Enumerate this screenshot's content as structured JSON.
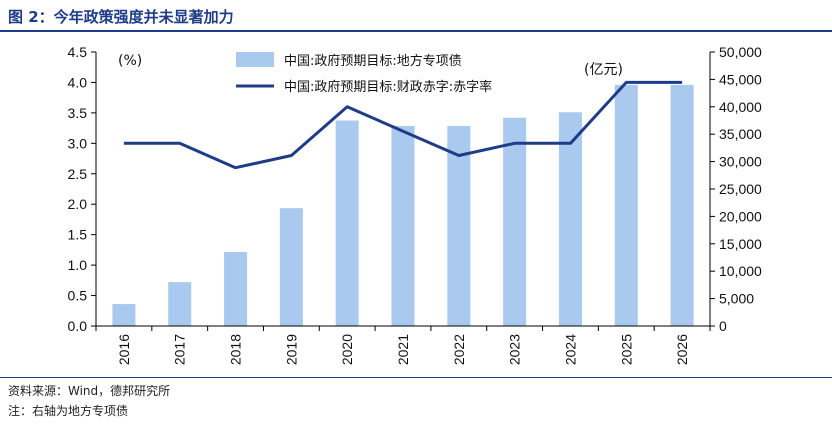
{
  "title": "图 2：今年政策强度并未显著加力",
  "source_note": "资料来源：Wind，德邦研究所",
  "axis_note": "注：右轴为地方专项债",
  "colors": {
    "bar": "#a9c9ee",
    "line": "#1f3c88",
    "title": "#1f3c88"
  },
  "chart_data": {
    "type": "bar+line",
    "categories": [
      "2016",
      "2017",
      "2018",
      "2019",
      "2020",
      "2021",
      "2022",
      "2023",
      "2024",
      "2025",
      "2026"
    ],
    "series": [
      {
        "name": "中国:政府预期目标:地方专项债",
        "type": "bar",
        "axis": "right",
        "values": [
          4000,
          8000,
          13500,
          21500,
          37500,
          36500,
          36500,
          38000,
          39000,
          44000,
          44000
        ]
      },
      {
        "name": "中国:政府预期目标:财政赤字:赤字率",
        "type": "line",
        "axis": "left",
        "values": [
          3.0,
          3.0,
          2.6,
          2.8,
          3.6,
          3.2,
          2.8,
          3.0,
          3.0,
          4.0,
          4.0
        ]
      }
    ],
    "left_axis": {
      "unit": "(%)",
      "ylim": [
        0,
        4.5
      ],
      "ticks": [
        "0.0",
        "0.5",
        "1.0",
        "1.5",
        "2.0",
        "2.5",
        "3.0",
        "3.5",
        "4.0",
        "4.5"
      ]
    },
    "right_axis": {
      "unit": "(亿元)",
      "ylim": [
        0,
        50000
      ],
      "ticks": [
        "0",
        "5,000",
        "10,000",
        "15,000",
        "20,000",
        "25,000",
        "30,000",
        "35,000",
        "40,000",
        "45,000",
        "50,000"
      ]
    },
    "legend_position": "top-center",
    "grid": false
  }
}
